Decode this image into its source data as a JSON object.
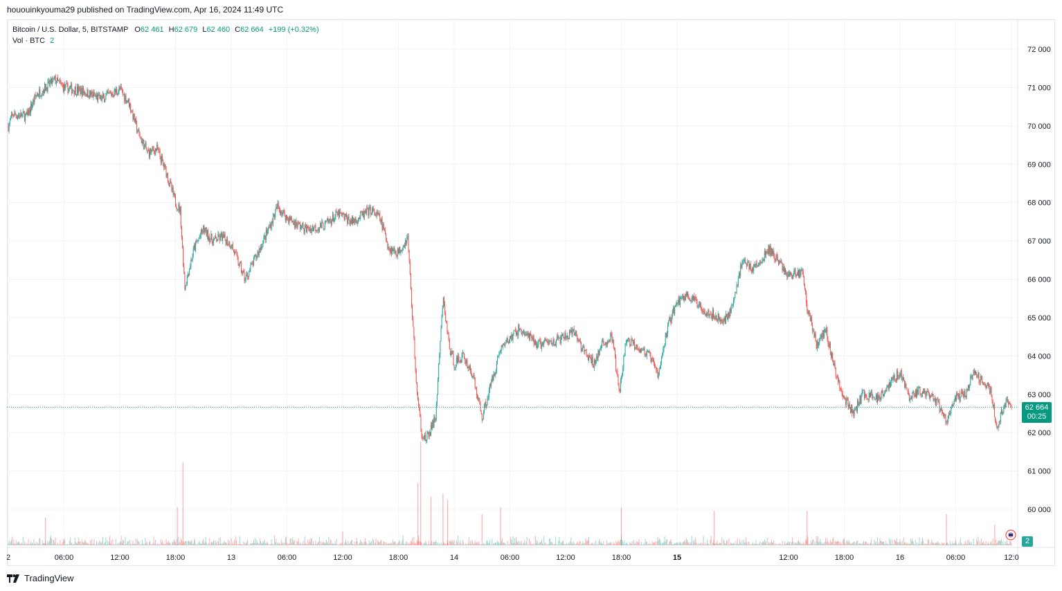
{
  "header": {
    "publisher_line": "hououinkyouma29 published on TradingView.com, Apr 16, 2024 11:49 UTC"
  },
  "legend": {
    "symbol": "Bitcoin / U.S. Dollar, 5, BITSTAMP",
    "open_label": "O",
    "open_value": "62 461",
    "high_label": "H",
    "high_value": "62 679",
    "low_label": "L",
    "low_value": "62 460",
    "close_label": "C",
    "close_value": "62 664",
    "change": "+199 (+0.32%)",
    "volume_label": "Vol · BTC",
    "volume_value": "2"
  },
  "last_price": {
    "value": "62 664",
    "countdown": "00:25"
  },
  "volume_badge": "2",
  "footer": {
    "brand": "TradingView"
  },
  "colors": {
    "up": "#26a69a",
    "down": "#ef5350",
    "accent": "#089981",
    "grid": "#f0f3fa"
  },
  "chart_data": {
    "type": "candlestick",
    "title": "Bitcoin / U.S. Dollar, 5, BITSTAMP",
    "y_axis": {
      "position": "right",
      "ticks": [
        {
          "value": 72000,
          "label": "72 000"
        },
        {
          "value": 71000,
          "label": "71 000"
        },
        {
          "value": 70000,
          "label": "70 000"
        },
        {
          "value": 69000,
          "label": "69 000"
        },
        {
          "value": 68000,
          "label": "68 000"
        },
        {
          "value": 67000,
          "label": "67 000"
        },
        {
          "value": 66000,
          "label": "66 000"
        },
        {
          "value": 65000,
          "label": "65 000"
        },
        {
          "value": 64000,
          "label": "64 000"
        },
        {
          "value": 63000,
          "label": "63 000"
        },
        {
          "value": 62000,
          "label": "62 000"
        },
        {
          "value": 61000,
          "label": "61 000"
        },
        {
          "value": 60000,
          "label": "60 000"
        }
      ]
    },
    "x_axis": {
      "ticks": [
        {
          "t": 0,
          "label": "2",
          "bold": false
        },
        {
          "t": 6,
          "label": "06:00",
          "bold": false
        },
        {
          "t": 12,
          "label": "12:00",
          "bold": false
        },
        {
          "t": 18,
          "label": "18:00",
          "bold": false
        },
        {
          "t": 24,
          "label": "13",
          "bold": false
        },
        {
          "t": 30,
          "label": "06:00",
          "bold": false
        },
        {
          "t": 36,
          "label": "12:00",
          "bold": false
        },
        {
          "t": 42,
          "label": "18:00",
          "bold": false
        },
        {
          "t": 48,
          "label": "14",
          "bold": false
        },
        {
          "t": 54,
          "label": "06:00",
          "bold": false
        },
        {
          "t": 60,
          "label": "12:00",
          "bold": false
        },
        {
          "t": 66,
          "label": "18:00",
          "bold": false
        },
        {
          "t": 72,
          "label": "15",
          "bold": true
        },
        {
          "t": 84,
          "label": "12:00",
          "bold": false
        },
        {
          "t": 90,
          "label": "18:00",
          "bold": false
        },
        {
          "t": 96,
          "label": "16",
          "bold": false
        },
        {
          "t": 102,
          "label": "06:00",
          "bold": false
        },
        {
          "t": 108,
          "label": "12:0",
          "bold": false
        }
      ]
    },
    "time_range_hours": [
      0,
      108.5
    ],
    "price_path": [
      [
        0,
        70000
      ],
      [
        0.5,
        70300
      ],
      [
        2,
        70250
      ],
      [
        3,
        70800
      ],
      [
        4,
        71000
      ],
      [
        5,
        71200
      ],
      [
        6,
        71000
      ],
      [
        8,
        70900
      ],
      [
        10,
        70700
      ],
      [
        12,
        70950
      ],
      [
        13,
        70600
      ],
      [
        14,
        69800
      ],
      [
        15,
        69300
      ],
      [
        16,
        69400
      ],
      [
        17,
        68800
      ],
      [
        18,
        68000
      ],
      [
        18.5,
        67800
      ],
      [
        19,
        65800
      ],
      [
        20,
        66800
      ],
      [
        21,
        67300
      ],
      [
        22,
        67000
      ],
      [
        23,
        67100
      ],
      [
        24,
        66900
      ],
      [
        25.5,
        66000
      ],
      [
        26.5,
        66500
      ],
      [
        28,
        67300
      ],
      [
        29,
        67900
      ],
      [
        30,
        67600
      ],
      [
        32,
        67300
      ],
      [
        34,
        67400
      ],
      [
        35.5,
        67700
      ],
      [
        37,
        67500
      ],
      [
        39,
        67800
      ],
      [
        40,
        67600
      ],
      [
        41,
        66800
      ],
      [
        42,
        66700
      ],
      [
        43,
        67100
      ],
      [
        44,
        63000
      ],
      [
        44.5,
        62000
      ],
      [
        45,
        61800
      ],
      [
        46,
        62400
      ],
      [
        46.8,
        65500
      ],
      [
        47.5,
        64200
      ],
      [
        48,
        63800
      ],
      [
        49,
        64000
      ],
      [
        50,
        63500
      ],
      [
        51,
        62400
      ],
      [
        52,
        63300
      ],
      [
        53,
        64200
      ],
      [
        55,
        64700
      ],
      [
        57,
        64300
      ],
      [
        59,
        64400
      ],
      [
        61,
        64600
      ],
      [
        62,
        64100
      ],
      [
        63,
        63800
      ],
      [
        64,
        64300
      ],
      [
        65,
        64500
      ],
      [
        65.8,
        63000
      ],
      [
        66.5,
        64400
      ],
      [
        67.5,
        64300
      ],
      [
        69,
        64000
      ],
      [
        70,
        63500
      ],
      [
        71,
        64800
      ],
      [
        72,
        65400
      ],
      [
        73,
        65600
      ],
      [
        75,
        65200
      ],
      [
        77,
        64900
      ],
      [
        78,
        65300
      ],
      [
        79,
        66500
      ],
      [
        80,
        66300
      ],
      [
        81,
        66400
      ],
      [
        81.8,
        66800
      ],
      [
        82.5,
        66600
      ],
      [
        84,
        66100
      ],
      [
        85.5,
        66200
      ],
      [
        86,
        65300
      ],
      [
        87,
        64300
      ],
      [
        88,
        64700
      ],
      [
        89,
        63600
      ],
      [
        90,
        62900
      ],
      [
        91,
        62500
      ],
      [
        92,
        63000
      ],
      [
        93.5,
        62900
      ],
      [
        95,
        63300
      ],
      [
        96,
        63600
      ],
      [
        97,
        62900
      ],
      [
        98,
        63100
      ],
      [
        100,
        62800
      ],
      [
        101,
        62300
      ],
      [
        102,
        62900
      ],
      [
        103,
        63000
      ],
      [
        104,
        63600
      ],
      [
        105,
        63300
      ],
      [
        105.8,
        63100
      ],
      [
        106.5,
        62000
      ],
      [
        107,
        62600
      ],
      [
        107.5,
        62800
      ],
      [
        108,
        62664
      ]
    ],
    "volume_spikes": [
      {
        "t": 4,
        "v": 40
      },
      {
        "t": 18.2,
        "v": 55
      },
      {
        "t": 18.8,
        "v": 120
      },
      {
        "t": 36,
        "v": 20
      },
      {
        "t": 44.1,
        "v": 90
      },
      {
        "t": 44.4,
        "v": 150
      },
      {
        "t": 45.5,
        "v": 70
      },
      {
        "t": 46.8,
        "v": 75
      },
      {
        "t": 47.3,
        "v": 65
      },
      {
        "t": 51,
        "v": 45
      },
      {
        "t": 53,
        "v": 55
      },
      {
        "t": 66,
        "v": 55
      },
      {
        "t": 76,
        "v": 50
      },
      {
        "t": 86,
        "v": 50
      },
      {
        "t": 101,
        "v": 45
      },
      {
        "t": 106.2,
        "v": 30
      }
    ],
    "last_close": 62664
  }
}
